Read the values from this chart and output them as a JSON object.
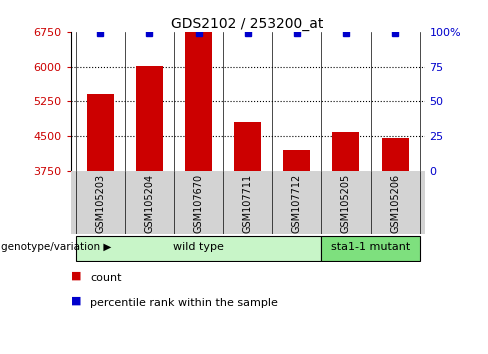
{
  "title": "GDS2102 / 253200_at",
  "samples": [
    "GSM105203",
    "GSM105204",
    "GSM107670",
    "GSM107711",
    "GSM107712",
    "GSM105205",
    "GSM105206"
  ],
  "counts": [
    5400,
    6020,
    6750,
    4800,
    4200,
    4600,
    4450
  ],
  "percentiles": [
    99,
    99,
    99,
    99,
    99,
    99,
    99
  ],
  "ylim_left": [
    3750,
    6750
  ],
  "ylim_right": [
    0,
    100
  ],
  "yticks_left": [
    3750,
    4500,
    5250,
    6000,
    6750
  ],
  "yticks_right": [
    0,
    25,
    50,
    75,
    100
  ],
  "bar_color": "#cc0000",
  "percentile_color": "#0000cc",
  "bar_bottom": 3750,
  "groups": [
    {
      "label": "wild type",
      "indices": [
        0,
        1,
        2,
        3,
        4
      ],
      "color": "#c8f5c8"
    },
    {
      "label": "sta1-1 mutant",
      "indices": [
        5,
        6
      ],
      "color": "#7ee07e"
    }
  ],
  "group_row_label": "genotype/variation",
  "legend_count_label": "count",
  "legend_percentile_label": "percentile rank within the sample",
  "sample_box_color": "#d3d3d3",
  "background_color": "#ffffff",
  "title_fontsize": 10,
  "tick_fontsize": 8,
  "sample_label_fontsize": 7,
  "group_label_fontsize": 8,
  "legend_fontsize": 8
}
